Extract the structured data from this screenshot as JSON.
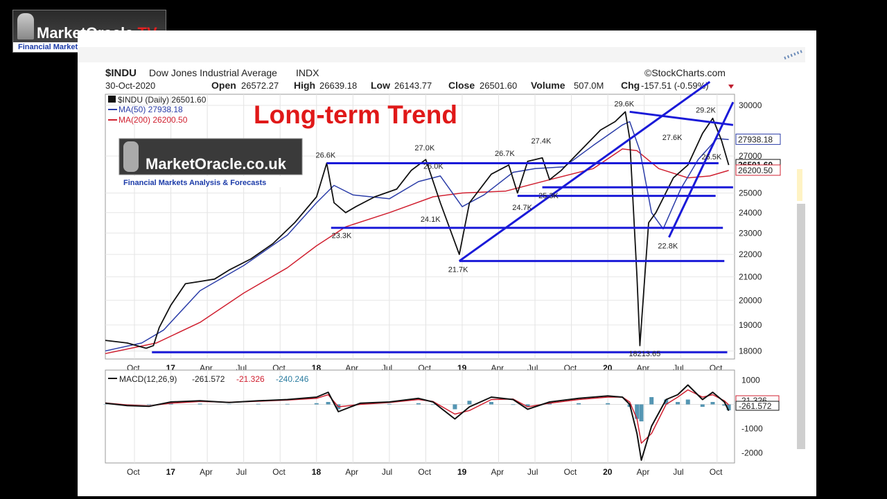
{
  "watermark_logo": {
    "name": "MarketOracle",
    "suffix": ".TV",
    "tagline": "Financial Markets Analysis & Forecasts"
  },
  "inner_logo": {
    "name": "MarketOracle.co.uk",
    "tagline": "Financial Markets Analysis & Forecasts"
  },
  "headline": "Long-term Trend",
  "header": {
    "symbol": "$INDU",
    "name": "Dow Jones Industrial Average",
    "exchange": "INDX",
    "source": "©StockCharts.com",
    "date": "30-Oct-2020",
    "open_label": "Open",
    "open": "26572.27",
    "high_label": "High",
    "high": "26639.18",
    "low_label": "Low",
    "low": "26143.77",
    "close_label": "Close",
    "close": "26501.60",
    "volume_label": "Volume",
    "volume": "507.0M",
    "chg_label": "Chg",
    "chg": "-157.51 (-0.59%)"
  },
  "legend": {
    "price": "$INDU (Daily) 26501.60",
    "ma50": "MA(50) 27938.18",
    "ma200": "MA(200) 26200.50"
  },
  "macd_legend": {
    "label": "MACD(12,26,9)",
    "v1": "-261.572",
    "v2": "-21.326",
    "v3": "-240.246"
  },
  "colors": {
    "price": "#111111",
    "ma50": "#2b3da8",
    "ma200": "#d02030",
    "trend": "#1a1ad8",
    "signal": "#d02030",
    "hist": "#2a7ca0",
    "headline": "#e01818"
  },
  "chart_data": {
    "type": "line",
    "title": "$INDU Dow Jones Industrial Average INDX",
    "x_ticks": [
      "Oct",
      "17",
      "Apr",
      "Jul",
      "Oct",
      "18",
      "Apr",
      "Jul",
      "Oct",
      "19",
      "Apr",
      "Jul",
      "Oct",
      "20",
      "Apr",
      "Jul",
      "Oct"
    ],
    "x_tick_dates": [
      2016.75,
      2017.0,
      2017.25,
      2017.5,
      2017.75,
      2018.0,
      2018.25,
      2018.5,
      2018.75,
      2019.0,
      2019.25,
      2019.5,
      2019.75,
      2020.0,
      2020.25,
      2020.5,
      2020.75
    ],
    "y_ticks": [
      18000,
      19000,
      20000,
      21000,
      22000,
      23000,
      24000,
      25000,
      27000,
      30000
    ],
    "ylim": [
      17700,
      30700
    ],
    "y_scale": "log",
    "xlim": [
      2016.55,
      2020.87
    ],
    "price_series": {
      "name": "$INDU (Daily)",
      "x": [
        2016.55,
        2016.7,
        2016.83,
        2016.88,
        2016.92,
        2017.0,
        2017.1,
        2017.2,
        2017.3,
        2017.4,
        2017.55,
        2017.7,
        2017.85,
        2018.0,
        2018.07,
        2018.12,
        2018.2,
        2018.27,
        2018.4,
        2018.55,
        2018.65,
        2018.75,
        2018.85,
        2018.98,
        2019.05,
        2019.2,
        2019.32,
        2019.38,
        2019.45,
        2019.55,
        2019.6,
        2019.68,
        2019.8,
        2019.95,
        2020.05,
        2020.12,
        2020.15,
        2020.2,
        2020.22,
        2020.28,
        2020.33,
        2020.45,
        2020.55,
        2020.65,
        2020.72,
        2020.78,
        2020.83
      ],
      "y": [
        18400,
        18300,
        18100,
        18200,
        18900,
        19800,
        20700,
        20800,
        20900,
        21300,
        21800,
        22500,
        23500,
        24800,
        26600,
        24500,
        24000,
        24300,
        24800,
        25200,
        26200,
        26800,
        24500,
        22000,
        24500,
        26000,
        26500,
        25000,
        26700,
        26900,
        25700,
        26200,
        27200,
        28500,
        29000,
        29600,
        28000,
        21000,
        18200,
        23500,
        24000,
        25800,
        26500,
        28300,
        29200,
        27900,
        26500
      ]
    },
    "ma50_series": {
      "name": "MA(50)",
      "last": 27938.18,
      "x": [
        2016.55,
        2016.8,
        2016.95,
        2017.2,
        2017.5,
        2017.8,
        2018.0,
        2018.12,
        2018.25,
        2018.5,
        2018.7,
        2018.85,
        2019.0,
        2019.15,
        2019.35,
        2019.5,
        2019.7,
        2019.9,
        2020.1,
        2020.15,
        2020.22,
        2020.3,
        2020.38,
        2020.5,
        2020.62,
        2020.75,
        2020.83
      ],
      "y": [
        18000,
        18300,
        18800,
        20400,
        21500,
        22900,
        24500,
        25400,
        24900,
        24700,
        25600,
        25900,
        24300,
        24900,
        26100,
        26300,
        26400,
        27600,
        28800,
        29000,
        27300,
        24000,
        23200,
        25200,
        26800,
        28000,
        27938
      ]
    },
    "ma200_series": {
      "name": "MA(200)",
      "last": 26200.5,
      "x": [
        2016.55,
        2016.9,
        2017.2,
        2017.5,
        2017.8,
        2018.0,
        2018.2,
        2018.5,
        2018.8,
        2019.0,
        2019.3,
        2019.6,
        2019.9,
        2020.1,
        2020.2,
        2020.35,
        2020.55,
        2020.7,
        2020.83
      ],
      "y": [
        17900,
        18300,
        19100,
        20300,
        21400,
        22400,
        23300,
        24000,
        24800,
        25000,
        25100,
        25700,
        26300,
        27400,
        27300,
        26300,
        25800,
        25900,
        26200
      ]
    },
    "peak_labels": [
      {
        "text": "26.6K",
        "x": 2018.07,
        "y": 26600
      },
      {
        "text": "23.3K",
        "x": 2018.18,
        "y": 23300
      },
      {
        "text": "27.0K",
        "x": 2018.75,
        "y": 27000
      },
      {
        "text": "26.0K",
        "x": 2018.81,
        "y": 26000
      },
      {
        "text": "24.1K",
        "x": 2018.79,
        "y": 24100
      },
      {
        "text": "21.7K",
        "x": 2018.98,
        "y": 21700
      },
      {
        "text": "26.7K",
        "x": 2019.3,
        "y": 26700
      },
      {
        "text": "24.7K",
        "x": 2019.42,
        "y": 24700
      },
      {
        "text": "27.4K",
        "x": 2019.55,
        "y": 27400
      },
      {
        "text": "25.3K",
        "x": 2019.6,
        "y": 25300
      },
      {
        "text": "29.6K",
        "x": 2020.12,
        "y": 29600
      },
      {
        "text": "27.6K",
        "x": 2020.45,
        "y": 27600
      },
      {
        "text": "22.8K",
        "x": 2020.42,
        "y": 22800
      },
      {
        "text": "29.2K",
        "x": 2020.68,
        "y": 29200
      },
      {
        "text": "26.5K",
        "x": 2020.72,
        "y": 26500
      },
      {
        "text": "18213.65",
        "x": 2020.22,
        "y": 18214
      }
    ],
    "price_tags": [
      {
        "text": "27938.18",
        "y": 27938
      },
      {
        "text": "26501.60",
        "y": 26501
      },
      {
        "text": "26200.50",
        "y": 26200
      }
    ],
    "trendlines": [
      {
        "x1": 2016.87,
        "y1": 17950,
        "x2": 2020.82,
        "y2": 17950
      },
      {
        "x1": 2018.07,
        "y1": 26600,
        "x2": 2020.76,
        "y2": 26600
      },
      {
        "x1": 2018.1,
        "y1": 23250,
        "x2": 2020.79,
        "y2": 23250
      },
      {
        "x1": 2018.98,
        "y1": 21700,
        "x2": 2020.8,
        "y2": 21700
      },
      {
        "x1": 2019.38,
        "y1": 24850,
        "x2": 2020.74,
        "y2": 24850
      },
      {
        "x1": 2019.55,
        "y1": 25300,
        "x2": 2020.86,
        "y2": 25300
      },
      {
        "x1": 2020.15,
        "y1": 29600,
        "x2": 2020.86,
        "y2": 28800
      },
      {
        "x1": 2018.98,
        "y1": 21700,
        "x2": 2020.7,
        "y2": 31500
      },
      {
        "x1": 2020.42,
        "y1": 22800,
        "x2": 2020.86,
        "y2": 30200
      }
    ],
    "macd": {
      "name": "MACD(12,26,9)",
      "y_ticks": [
        1000,
        -1000,
        -2000
      ],
      "ylim": [
        -2300,
        1300
      ],
      "line_x": [
        2016.55,
        2016.7,
        2016.85,
        2017.0,
        2017.2,
        2017.4,
        2017.6,
        2017.8,
        2018.0,
        2018.08,
        2018.15,
        2018.3,
        2018.5,
        2018.7,
        2018.8,
        2018.95,
        2019.05,
        2019.2,
        2019.35,
        2019.45,
        2019.6,
        2019.8,
        2020.0,
        2020.1,
        2020.15,
        2020.2,
        2020.23,
        2020.3,
        2020.4,
        2020.48,
        2020.55,
        2020.65,
        2020.72,
        2020.8,
        2020.83
      ],
      "line_y": [
        50,
        -50,
        -80,
        100,
        150,
        80,
        150,
        200,
        300,
        500,
        -300,
        50,
        100,
        250,
        100,
        -600,
        -100,
        300,
        200,
        -200,
        100,
        250,
        350,
        300,
        0,
        -1200,
        -2300,
        -900,
        200,
        400,
        800,
        200,
        500,
        100,
        -262
      ],
      "signal_y": [
        60,
        -20,
        -60,
        50,
        120,
        90,
        130,
        180,
        250,
        400,
        -100,
        0,
        80,
        200,
        120,
        -400,
        -250,
        200,
        220,
        -100,
        50,
        200,
        300,
        300,
        100,
        -600,
        -1600,
        -1200,
        0,
        300,
        600,
        300,
        400,
        150,
        -21
      ]
    }
  }
}
